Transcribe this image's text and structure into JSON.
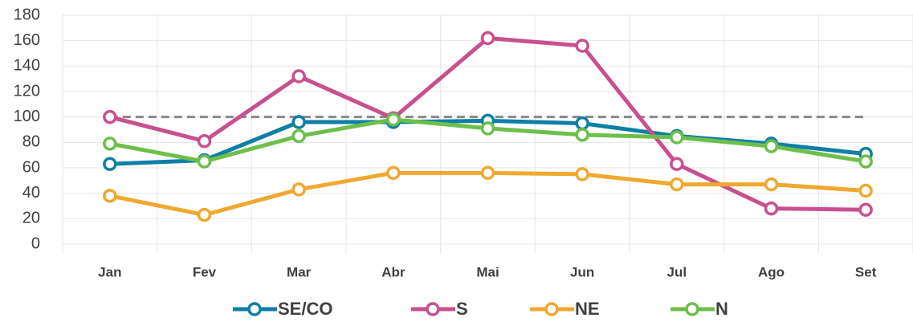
{
  "chart_data": {
    "type": "line",
    "categories": [
      "Jan",
      "Fev",
      "Mar",
      "Abr",
      "Mai",
      "Jun",
      "Jul",
      "Ago",
      "Set"
    ],
    "series": [
      {
        "name": "SE/CO",
        "color": "#0e7fa6",
        "values": [
          63,
          66,
          96,
          96,
          97,
          95,
          85,
          79,
          71
        ]
      },
      {
        "name": "S",
        "color": "#c9508f",
        "values": [
          100,
          81,
          132,
          99,
          162,
          156,
          63,
          28,
          27
        ]
      },
      {
        "name": "NE",
        "color": "#f0a830",
        "values": [
          38,
          23,
          43,
          56,
          56,
          55,
          47,
          47,
          42
        ]
      },
      {
        "name": "N",
        "color": "#6cc04a",
        "values": [
          79,
          65,
          85,
          98,
          91,
          86,
          84,
          77,
          65
        ]
      }
    ],
    "reference_line": {
      "value": 100,
      "color": "#888888"
    },
    "ylim": [
      0,
      180
    ],
    "yticks": [
      0,
      20,
      40,
      60,
      80,
      100,
      120,
      140,
      160,
      180
    ],
    "grid": true,
    "legend": "bottom"
  }
}
